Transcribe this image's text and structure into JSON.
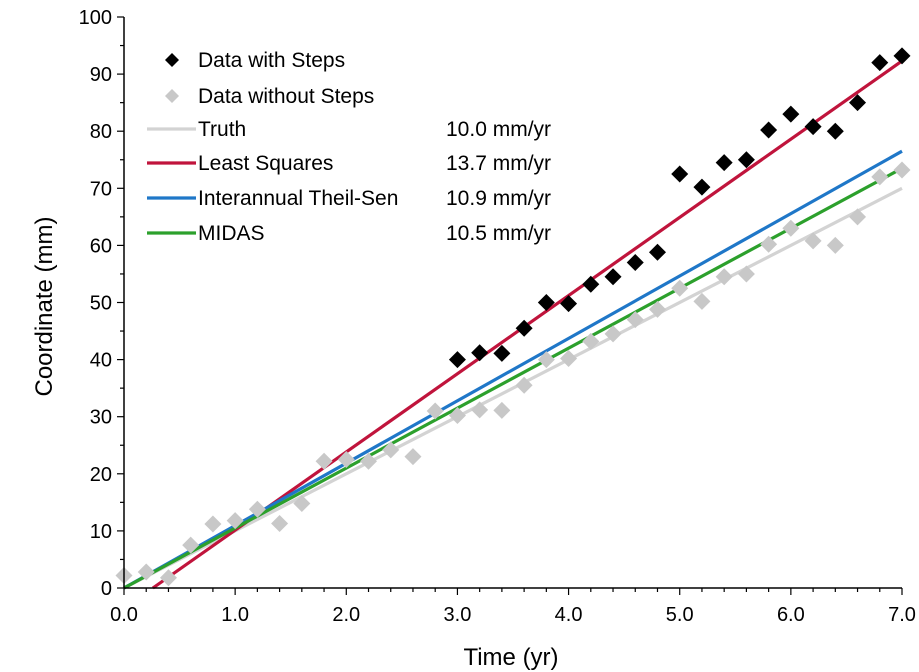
{
  "chart_data": {
    "type": "scatter",
    "xlabel": "Time (yr)",
    "ylabel": "Coordinate (mm)",
    "xlim": [
      0,
      7
    ],
    "ylim": [
      0,
      100
    ],
    "x_ticks": [
      "0.0",
      "1.0",
      "2.0",
      "3.0",
      "4.0",
      "5.0",
      "6.0",
      "7.0"
    ],
    "y_ticks": [
      "0",
      "10",
      "20",
      "30",
      "40",
      "50",
      "60",
      "70",
      "80",
      "90",
      "100"
    ],
    "grid": false,
    "legend_position": "top-left",
    "scatter_series": [
      {
        "name": "Data with Steps",
        "marker": "diamond",
        "color": "#000000",
        "x": [
          3.0,
          3.2,
          3.4,
          3.6,
          3.8,
          4.0,
          4.2,
          4.4,
          4.6,
          4.8,
          5.0,
          5.2,
          5.4,
          5.6,
          5.8,
          6.0,
          6.2,
          6.4,
          6.6,
          6.8,
          7.0
        ],
        "y": [
          40.0,
          41.2,
          41.1,
          45.5,
          50.0,
          49.8,
          53.2,
          54.5,
          57.0,
          58.8,
          72.5,
          70.2,
          74.5,
          75.0,
          80.2,
          83.0,
          80.8,
          80.0,
          85.0,
          92.0,
          93.2
        ]
      },
      {
        "name": "Data without Steps",
        "marker": "diamond",
        "color": "#c8c8c8",
        "x": [
          0.0,
          0.2,
          0.4,
          0.6,
          0.8,
          1.0,
          1.2,
          1.4,
          1.6,
          1.8,
          2.0,
          2.2,
          2.4,
          2.6,
          2.8,
          3.0,
          3.2,
          3.4,
          3.6,
          3.8,
          4.0,
          4.2,
          4.4,
          4.6,
          4.8,
          5.0,
          5.2,
          5.4,
          5.6,
          5.8,
          6.0,
          6.2,
          6.4,
          6.6,
          6.8,
          7.0
        ],
        "y": [
          2.2,
          2.8,
          1.8,
          7.5,
          11.2,
          11.8,
          13.8,
          11.3,
          14.8,
          22.2,
          22.5,
          22.2,
          24.2,
          23.0,
          31.0,
          30.2,
          31.2,
          31.1,
          35.5,
          40.0,
          40.2,
          43.2,
          44.5,
          47.0,
          48.8,
          52.5,
          50.2,
          54.5,
          55.0,
          60.2,
          63.0,
          60.8,
          60.0,
          65.0,
          72.0,
          73.2
        ]
      }
    ],
    "line_series": [
      {
        "name": "Truth",
        "rate": "10.0 mm/yr",
        "color": "#d3d3d3",
        "x": [
          0,
          7
        ],
        "y": [
          0,
          70
        ]
      },
      {
        "name": "Least Squares",
        "rate": "13.7 mm/yr",
        "color": "#c0143c",
        "x": [
          0.26,
          7
        ],
        "y": [
          0,
          92.3
        ]
      },
      {
        "name": "Interannual Theil-Sen",
        "rate": "10.9 mm/yr",
        "color": "#1f77c8",
        "x": [
          0,
          7
        ],
        "y": [
          0,
          76.5
        ]
      },
      {
        "name": "MIDAS",
        "rate": "10.5 mm/yr",
        "color": "#2ca02c",
        "x": [
          0,
          7
        ],
        "y": [
          0,
          73.5
        ]
      }
    ]
  }
}
